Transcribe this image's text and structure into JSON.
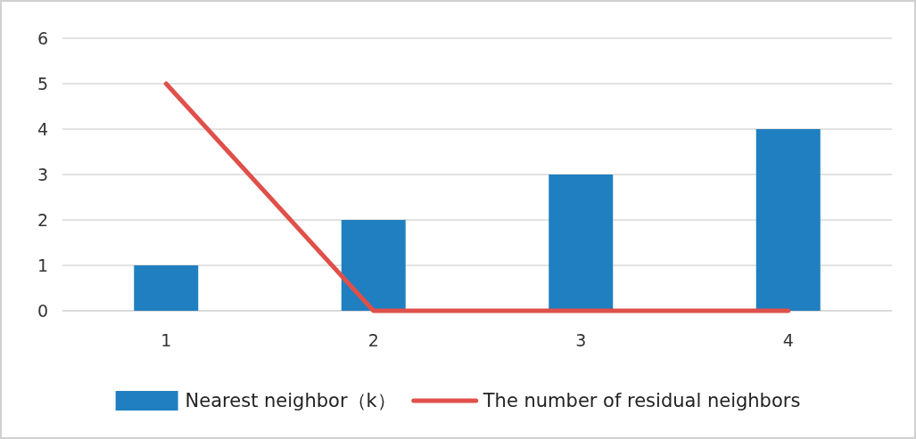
{
  "chart_data": {
    "type": "bar",
    "categories": [
      "1",
      "2",
      "3",
      "4"
    ],
    "series": [
      {
        "name": "Nearest neighbor（k）",
        "color": "#1f7fc0",
        "values": [
          1,
          2,
          3,
          4
        ]
      },
      {
        "name": "The number of residual neighbors",
        "type": "line",
        "color": "#e0504a",
        "values": [
          5,
          0,
          0,
          0
        ]
      }
    ],
    "ylim": [
      0,
      6
    ],
    "yticks": [
      0,
      1,
      2,
      3,
      4,
      5,
      6
    ],
    "grid": "y",
    "legend": "bottom"
  }
}
